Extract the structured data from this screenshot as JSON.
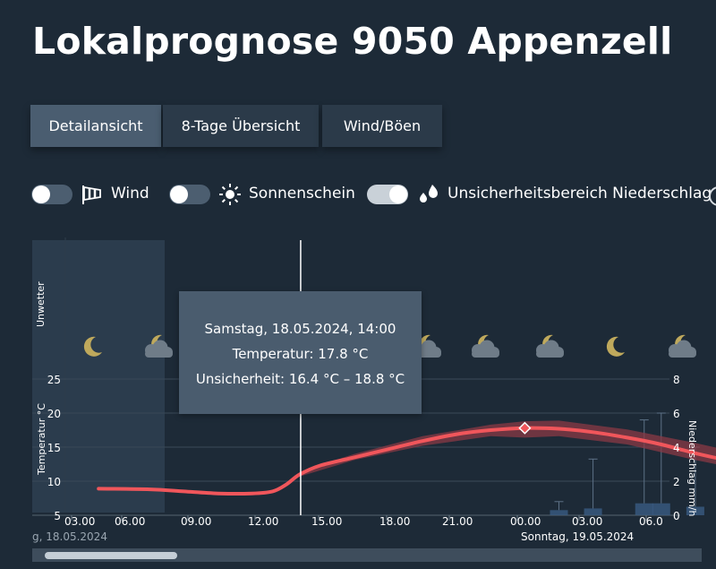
{
  "page": {
    "title": "Lokalprognose 9050 Appenzell"
  },
  "tabs": [
    {
      "label": "Detailansicht",
      "active": true
    },
    {
      "label": "8-Tage Übersicht",
      "active": false
    },
    {
      "label": "Wind/Böen",
      "active": false
    }
  ],
  "toggles": [
    {
      "label": "Wind",
      "icon": "windsock-icon",
      "on": false
    },
    {
      "label": "Sonnenschein",
      "icon": "sun-icon",
      "on": false
    },
    {
      "label": "Unsicherheitsbereich Niederschlag",
      "icon": "raindrops-icon",
      "on": true
    }
  ],
  "tooltip": {
    "line1": "Samstag, 18.05.2024, 14:00",
    "line2": "Temperatur: 17.8 °C",
    "line3": "Unsicherheit: 16.4 °C – 18.8 °C"
  },
  "chart_data": {
    "type": "line",
    "band_label": "Unwetter",
    "ylabel": "Temperatur °C",
    "y2label": "Niederschlag mm/h",
    "ylim": [
      5,
      25
    ],
    "y2lim": [
      0,
      8
    ],
    "yticks": [
      "5",
      "10",
      "15",
      "20",
      "25"
    ],
    "y2ticks": [
      "0",
      "2",
      "4",
      "6",
      "8"
    ],
    "x_tick_labels": [
      "03.00",
      "06.00",
      "09.00",
      "12.00",
      "15.00",
      "18.00",
      "21.00",
      "00.00",
      "03.00",
      "06.0"
    ],
    "date_labels": [
      "g, 18.05.2024",
      "Sonntag, 19.05.2024"
    ],
    "weather_icons": [
      "moon-icon",
      "moon-cloud-icon",
      "moon-cloud-icon",
      "moon-cloud-icon",
      "moon-cloud-icon",
      "moon-cloud-icon",
      "moon-cloud-icon",
      "moon-cloud-icon"
    ],
    "colors": {
      "temperature": "#f0565b",
      "uncertainty": "#8a3a46",
      "precip": "#3a5b82",
      "band": "#2b3c4d"
    },
    "series": [
      {
        "name": "Temperatur",
        "x": [
          1.5,
          3,
          4,
          5,
          6,
          6.6,
          7.0,
          7.4,
          8,
          9,
          10,
          11,
          12,
          13,
          14,
          15,
          16,
          17,
          18,
          19,
          20,
          21,
          22,
          23,
          24,
          25,
          26,
          27,
          28,
          29,
          30,
          31
        ],
        "y": [
          8.9,
          8.8,
          8.5,
          8.2,
          8.2,
          8.5,
          9.5,
          11.0,
          12.3,
          13.5,
          14.7,
          15.9,
          16.9,
          17.5,
          17.8,
          17.7,
          17.2,
          16.4,
          15.4,
          14.1,
          13.0,
          12.0,
          11.2,
          10.6,
          10.3,
          10.1,
          9.9,
          9.9,
          10.1,
          10.5,
          11.1,
          11.8
        ]
      }
    ],
    "uncertainty": {
      "x": [
        7.4,
        9,
        11,
        13,
        14,
        15,
        17,
        19,
        21,
        23,
        25,
        27,
        29,
        31
      ],
      "low": [
        10.7,
        13.1,
        15.2,
        16.6,
        16.4,
        16.6,
        15.4,
        13.1,
        11.1,
        9.8,
        9.5,
        9.5,
        10.0,
        11.3
      ],
      "high": [
        11.4,
        14.0,
        16.6,
        18.3,
        18.8,
        18.9,
        17.6,
        15.6,
        13.4,
        11.5,
        10.8,
        10.4,
        11.0,
        12.4
      ]
    },
    "precip": {
      "x": [
        15.0,
        16.0,
        17.5,
        18.0,
        19.0,
        20.0,
        21.0,
        22.0,
        23.5
      ],
      "y": [
        0.3,
        0.4,
        0.7,
        0.7,
        0.5,
        0.3,
        0.3,
        0.2,
        0.1
      ],
      "high": [
        0.8,
        3.3,
        5.6,
        6.0,
        4.0,
        2.2,
        3.8,
        0.8,
        0.2
      ]
    },
    "markers": {
      "now_hour": 7.4,
      "midnight_hour": 24,
      "selected_hour": 14
    }
  }
}
